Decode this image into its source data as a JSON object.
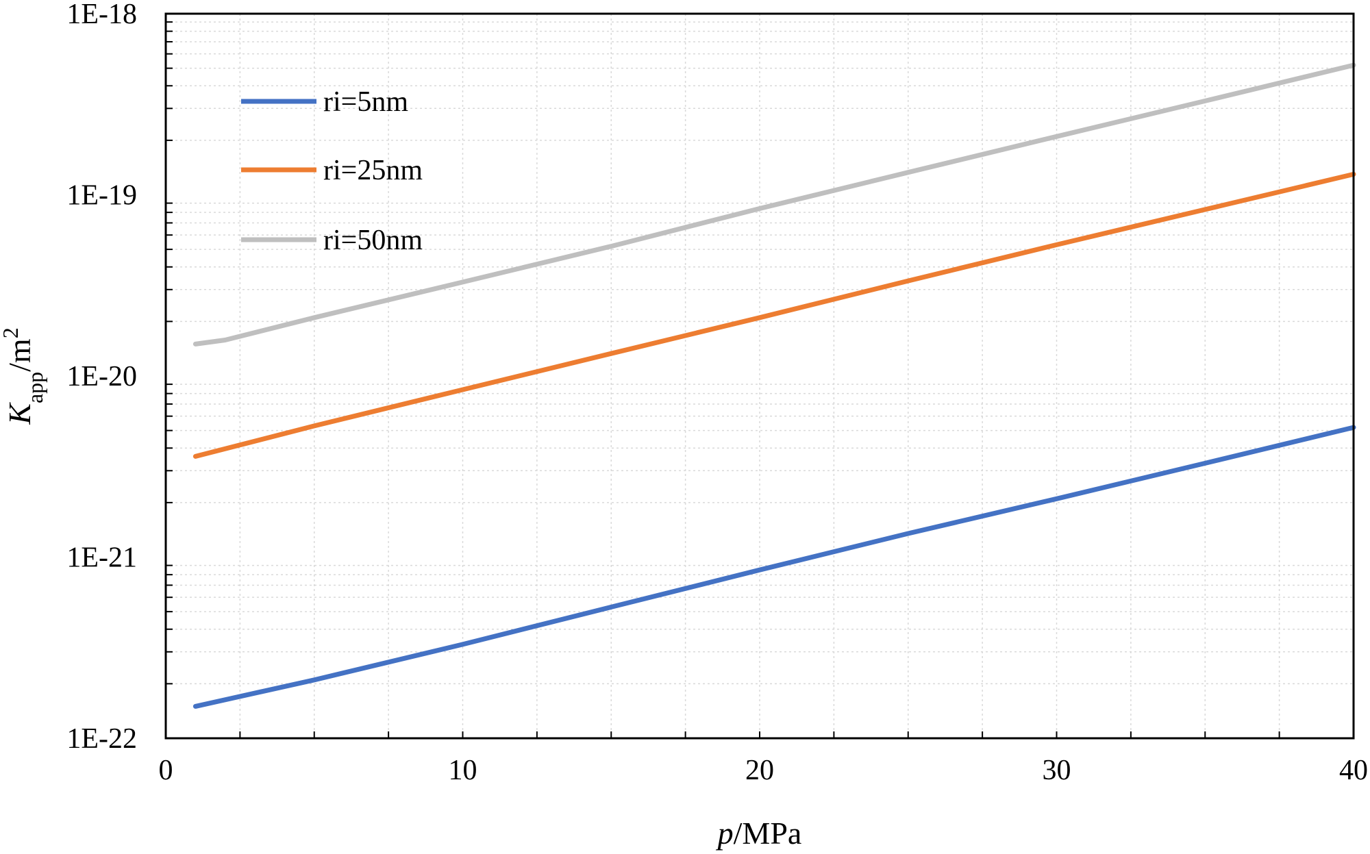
{
  "chart_data": {
    "type": "line",
    "xlabel_italic": "p",
    "xlabel_rest": "/MPa",
    "ylabel_italic": "K",
    "ylabel_sub": "app",
    "ylabel_mid": "/m",
    "ylabel_sup": "2",
    "xlim": [
      0,
      40
    ],
    "ylim_log10": [
      -22,
      -18
    ],
    "x_ticks": [
      0,
      10,
      20,
      30,
      40
    ],
    "x_tick_labels": [
      "0",
      "10",
      "20",
      "30",
      "40"
    ],
    "y_tick_exponents": [
      -22,
      -21,
      -20,
      -19,
      -18
    ],
    "y_tick_labels": [
      "1E-22",
      "1E-21",
      "1E-20",
      "1E-19",
      "1E-18"
    ],
    "grid": true,
    "legend_position": "top-left",
    "series": [
      {
        "name": "ri=5nm",
        "color": "#4472C4",
        "x": [
          1,
          5,
          10,
          15,
          20,
          25,
          30,
          35,
          40
        ],
        "y": [
          1.5e-22,
          2.1e-22,
          3.3e-22,
          5.3e-22,
          8.5e-22,
          1.35e-21,
          2.1e-21,
          3.3e-21,
          5.2e-21
        ]
      },
      {
        "name": "ri=25nm",
        "color": "#ED7D31",
        "x": [
          1,
          5,
          10,
          15,
          20,
          25,
          30,
          35,
          40
        ],
        "y": [
          3.6e-21,
          5.3e-21,
          8.4e-21,
          1.33e-20,
          2.1e-20,
          3.35e-20,
          5.3e-20,
          8.3e-20,
          1.3e-19
        ]
      },
      {
        "name": "ri=50nm",
        "color": "#BFBFBF",
        "x": [
          1,
          2,
          5,
          10,
          15,
          20,
          25,
          30,
          35,
          40
        ],
        "y": [
          1.5e-20,
          1.58e-20,
          2.1e-20,
          3.3e-20,
          5.2e-20,
          8.4e-20,
          1.33e-19,
          2.1e-19,
          3.3e-19,
          5.2e-19
        ]
      }
    ]
  }
}
